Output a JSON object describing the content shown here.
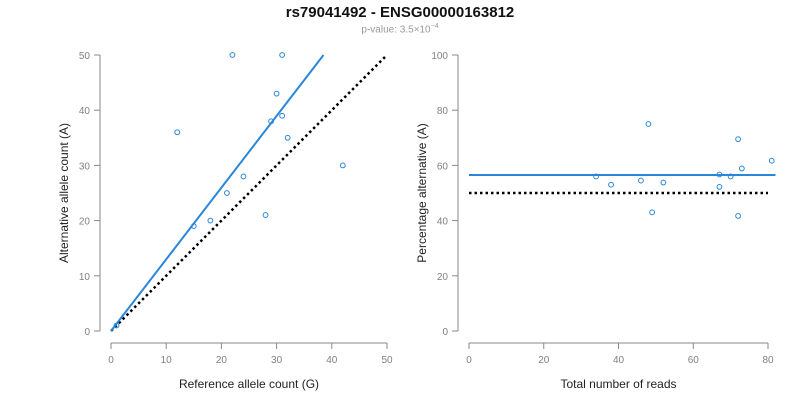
{
  "header": {
    "title": "rs79041492 - ENSG00000163812",
    "pvalue_label": "p-value:",
    "pvalue_mantissa": "3.5",
    "pvalue_times": "×10",
    "pvalue_exponent": "−4"
  },
  "colors": {
    "fit_line": "#2a86d8",
    "points": "#2a86d8",
    "reference_line": "#000000",
    "axis": "#888888"
  },
  "chart_data": [
    {
      "type": "scatter",
      "xlabel": "Reference allele count (G)",
      "ylabel": "Alternative allele count (A)",
      "xlim": [
        0,
        50
      ],
      "ylim": [
        0,
        50
      ],
      "xticks": [
        0,
        10,
        20,
        30,
        40,
        50
      ],
      "yticks": [
        0,
        10,
        20,
        30,
        40,
        50
      ],
      "points": [
        {
          "x": 1,
          "y": 1
        },
        {
          "x": 12,
          "y": 36
        },
        {
          "x": 15,
          "y": 19
        },
        {
          "x": 18,
          "y": 20
        },
        {
          "x": 21,
          "y": 25
        },
        {
          "x": 22,
          "y": 50
        },
        {
          "x": 24,
          "y": 28
        },
        {
          "x": 28,
          "y": 21
        },
        {
          "x": 29,
          "y": 38
        },
        {
          "x": 30,
          "y": 43
        },
        {
          "x": 31,
          "y": 50
        },
        {
          "x": 31,
          "y": 39
        },
        {
          "x": 32,
          "y": 35
        },
        {
          "x": 42,
          "y": 30
        }
      ],
      "fit_line": [
        [
          0,
          0
        ],
        [
          38.5,
          50
        ]
      ],
      "reference_line": [
        [
          0,
          0
        ],
        [
          50,
          50
        ]
      ],
      "grid": false
    },
    {
      "type": "scatter",
      "xlabel": "Total number of reads",
      "ylabel": "Percentage alternative (A)",
      "xlim": [
        0,
        80
      ],
      "ylim": [
        0,
        100
      ],
      "xticks": [
        0,
        20,
        40,
        60,
        80
      ],
      "yticks": [
        0,
        20,
        40,
        60,
        80,
        100
      ],
      "points": [
        {
          "x": 34,
          "y": 56
        },
        {
          "x": 38,
          "y": 53
        },
        {
          "x": 46,
          "y": 54.5
        },
        {
          "x": 48,
          "y": 75
        },
        {
          "x": 49,
          "y": 43
        },
        {
          "x": 52,
          "y": 53.8
        },
        {
          "x": 67,
          "y": 56.7
        },
        {
          "x": 67,
          "y": 52.2
        },
        {
          "x": 70,
          "y": 56
        },
        {
          "x": 72,
          "y": 69.5
        },
        {
          "x": 72,
          "y": 41.7
        },
        {
          "x": 73,
          "y": 58.9
        },
        {
          "x": 81,
          "y": 61.7
        }
      ],
      "fit_line": [
        [
          0,
          56.5
        ],
        [
          82,
          56.5
        ]
      ],
      "reference_line": [
        [
          0,
          50
        ],
        [
          80,
          50
        ]
      ],
      "grid": false
    }
  ]
}
